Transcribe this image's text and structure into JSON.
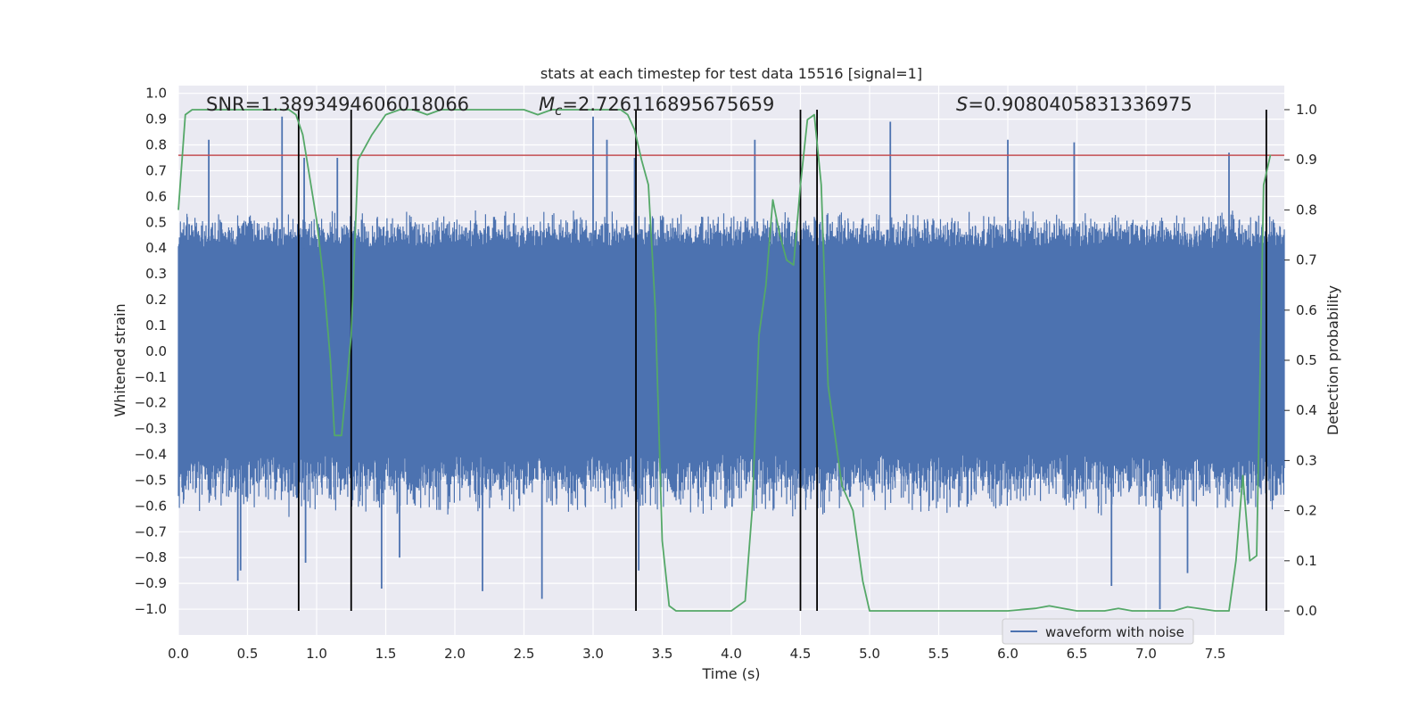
{
  "chart_data": {
    "type": "line",
    "title": "stats at each timestep for test data 15516 [signal=1]",
    "xlabel": "Time (s)",
    "ylabel": "Whitened strain",
    "y2label": "Detection probability",
    "xlim": [
      0.0,
      8.0
    ],
    "ylim": [
      -1.1,
      1.03
    ],
    "y2lim": [
      -0.048,
      1.048
    ],
    "x_ticks": [
      "0.0",
      "0.5",
      "1.0",
      "1.5",
      "2.0",
      "2.5",
      "3.0",
      "3.5",
      "4.0",
      "4.5",
      "5.0",
      "5.5",
      "6.0",
      "6.5",
      "7.0",
      "7.5"
    ],
    "y_ticks": [
      "1.0",
      "0.9",
      "0.8",
      "0.7",
      "0.6",
      "0.5",
      "0.4",
      "0.3",
      "0.2",
      "0.1",
      "0.0",
      "−0.1",
      "−0.2",
      "−0.3",
      "−0.4",
      "−0.5",
      "−0.6",
      "−0.7",
      "−0.8",
      "−0.9",
      "−1.0"
    ],
    "y2_ticks": [
      "1.0",
      "0.9",
      "0.8",
      "0.7",
      "0.6",
      "0.5",
      "0.4",
      "0.3",
      "0.2",
      "0.1",
      "0.0"
    ],
    "grid": true,
    "legend": {
      "placement": "lower-right",
      "entries": [
        "waveform with noise"
      ]
    },
    "annotations": {
      "snr": "SNR=1.3893494606018066",
      "mc_symbol": "M",
      "mc_sub": "c",
      "mc_value": "=2.726116895675659",
      "s_symbol": "S",
      "s_value": "=0.9080405831336975"
    },
    "waveform": {
      "name": "waveform with noise",
      "color": "#4c72b0",
      "t_range": [
        0.0,
        8.0
      ],
      "core_band": [
        -0.4,
        0.4
      ],
      "envelope": [
        -0.65,
        0.55
      ],
      "notable_peaks": [
        {
          "x": 0.22,
          "y": 0.82
        },
        {
          "x": 0.75,
          "y": 0.91
        },
        {
          "x": 0.91,
          "y": 0.75
        },
        {
          "x": 1.15,
          "y": 0.75
        },
        {
          "x": 3.0,
          "y": 0.91
        },
        {
          "x": 3.1,
          "y": 0.82
        },
        {
          "x": 3.3,
          "y": 0.75
        },
        {
          "x": 4.17,
          "y": 0.82
        },
        {
          "x": 5.15,
          "y": 0.89
        },
        {
          "x": 6.0,
          "y": 0.82
        },
        {
          "x": 6.48,
          "y": 0.81
        },
        {
          "x": 7.6,
          "y": 0.77
        },
        {
          "x": 0.43,
          "y": -0.89
        },
        {
          "x": 0.45,
          "y": -0.85
        },
        {
          "x": 1.47,
          "y": -0.92
        },
        {
          "x": 2.2,
          "y": -0.93
        },
        {
          "x": 2.63,
          "y": -0.96
        },
        {
          "x": 3.33,
          "y": -0.85
        },
        {
          "x": 6.75,
          "y": -0.91
        },
        {
          "x": 7.1,
          "y": -1.0
        },
        {
          "x": 7.3,
          "y": -0.86
        },
        {
          "x": 0.92,
          "y": -0.82
        },
        {
          "x": 1.6,
          "y": -0.8
        }
      ]
    },
    "threshold": {
      "y": 0.76,
      "color": "#c44e52"
    },
    "detection_probability": {
      "color": "#55a868",
      "x": [
        0.0,
        0.05,
        0.1,
        0.2,
        0.3,
        0.4,
        0.5,
        0.6,
        0.7,
        0.8,
        0.85,
        0.9,
        1.0,
        1.05,
        1.1,
        1.13,
        1.18,
        1.25,
        1.3,
        1.4,
        1.5,
        1.6,
        1.7,
        1.8,
        1.9,
        2.0,
        2.2,
        2.4,
        2.5,
        2.6,
        2.7,
        2.8,
        3.0,
        3.2,
        3.25,
        3.3,
        3.35,
        3.4,
        3.45,
        3.5,
        3.55,
        3.6,
        3.8,
        4.0,
        4.1,
        4.15,
        4.2,
        4.25,
        4.3,
        4.35,
        4.4,
        4.45,
        4.5,
        4.55,
        4.6,
        4.65,
        4.7,
        4.8,
        4.88,
        4.95,
        5.0,
        5.2,
        5.5,
        5.8,
        6.0,
        6.2,
        6.3,
        6.4,
        6.5,
        6.6,
        6.7,
        6.8,
        6.9,
        7.0,
        7.2,
        7.3,
        7.5,
        7.55,
        7.6,
        7.65,
        7.7,
        7.75,
        7.8,
        7.85,
        7.9
      ],
      "y": [
        0.8,
        0.99,
        1.0,
        1.0,
        1.0,
        1.0,
        1.0,
        1.0,
        1.0,
        1.0,
        0.99,
        0.95,
        0.78,
        0.66,
        0.5,
        0.35,
        0.35,
        0.55,
        0.9,
        0.95,
        0.99,
        1.0,
        1.0,
        0.99,
        1.0,
        1.0,
        1.0,
        1.0,
        1.0,
        0.99,
        1.0,
        1.0,
        1.0,
        1.0,
        0.99,
        0.96,
        0.9,
        0.85,
        0.6,
        0.14,
        0.01,
        0.0,
        0.0,
        0.0,
        0.02,
        0.2,
        0.55,
        0.65,
        0.82,
        0.75,
        0.7,
        0.69,
        0.85,
        0.98,
        0.99,
        0.85,
        0.45,
        0.25,
        0.2,
        0.06,
        0.0,
        0.0,
        0.0,
        0.0,
        0.0,
        0.005,
        0.01,
        0.005,
        0.0,
        0.0,
        0.0,
        0.005,
        0.0,
        0.0,
        0.0,
        0.008,
        0.0,
        0.0,
        0.0,
        0.1,
        0.27,
        0.1,
        0.11,
        0.85,
        0.91
      ]
    },
    "event_markers": {
      "color": "#000000",
      "x": [
        0.87,
        1.25,
        3.31,
        4.5,
        4.62,
        7.87
      ]
    }
  }
}
